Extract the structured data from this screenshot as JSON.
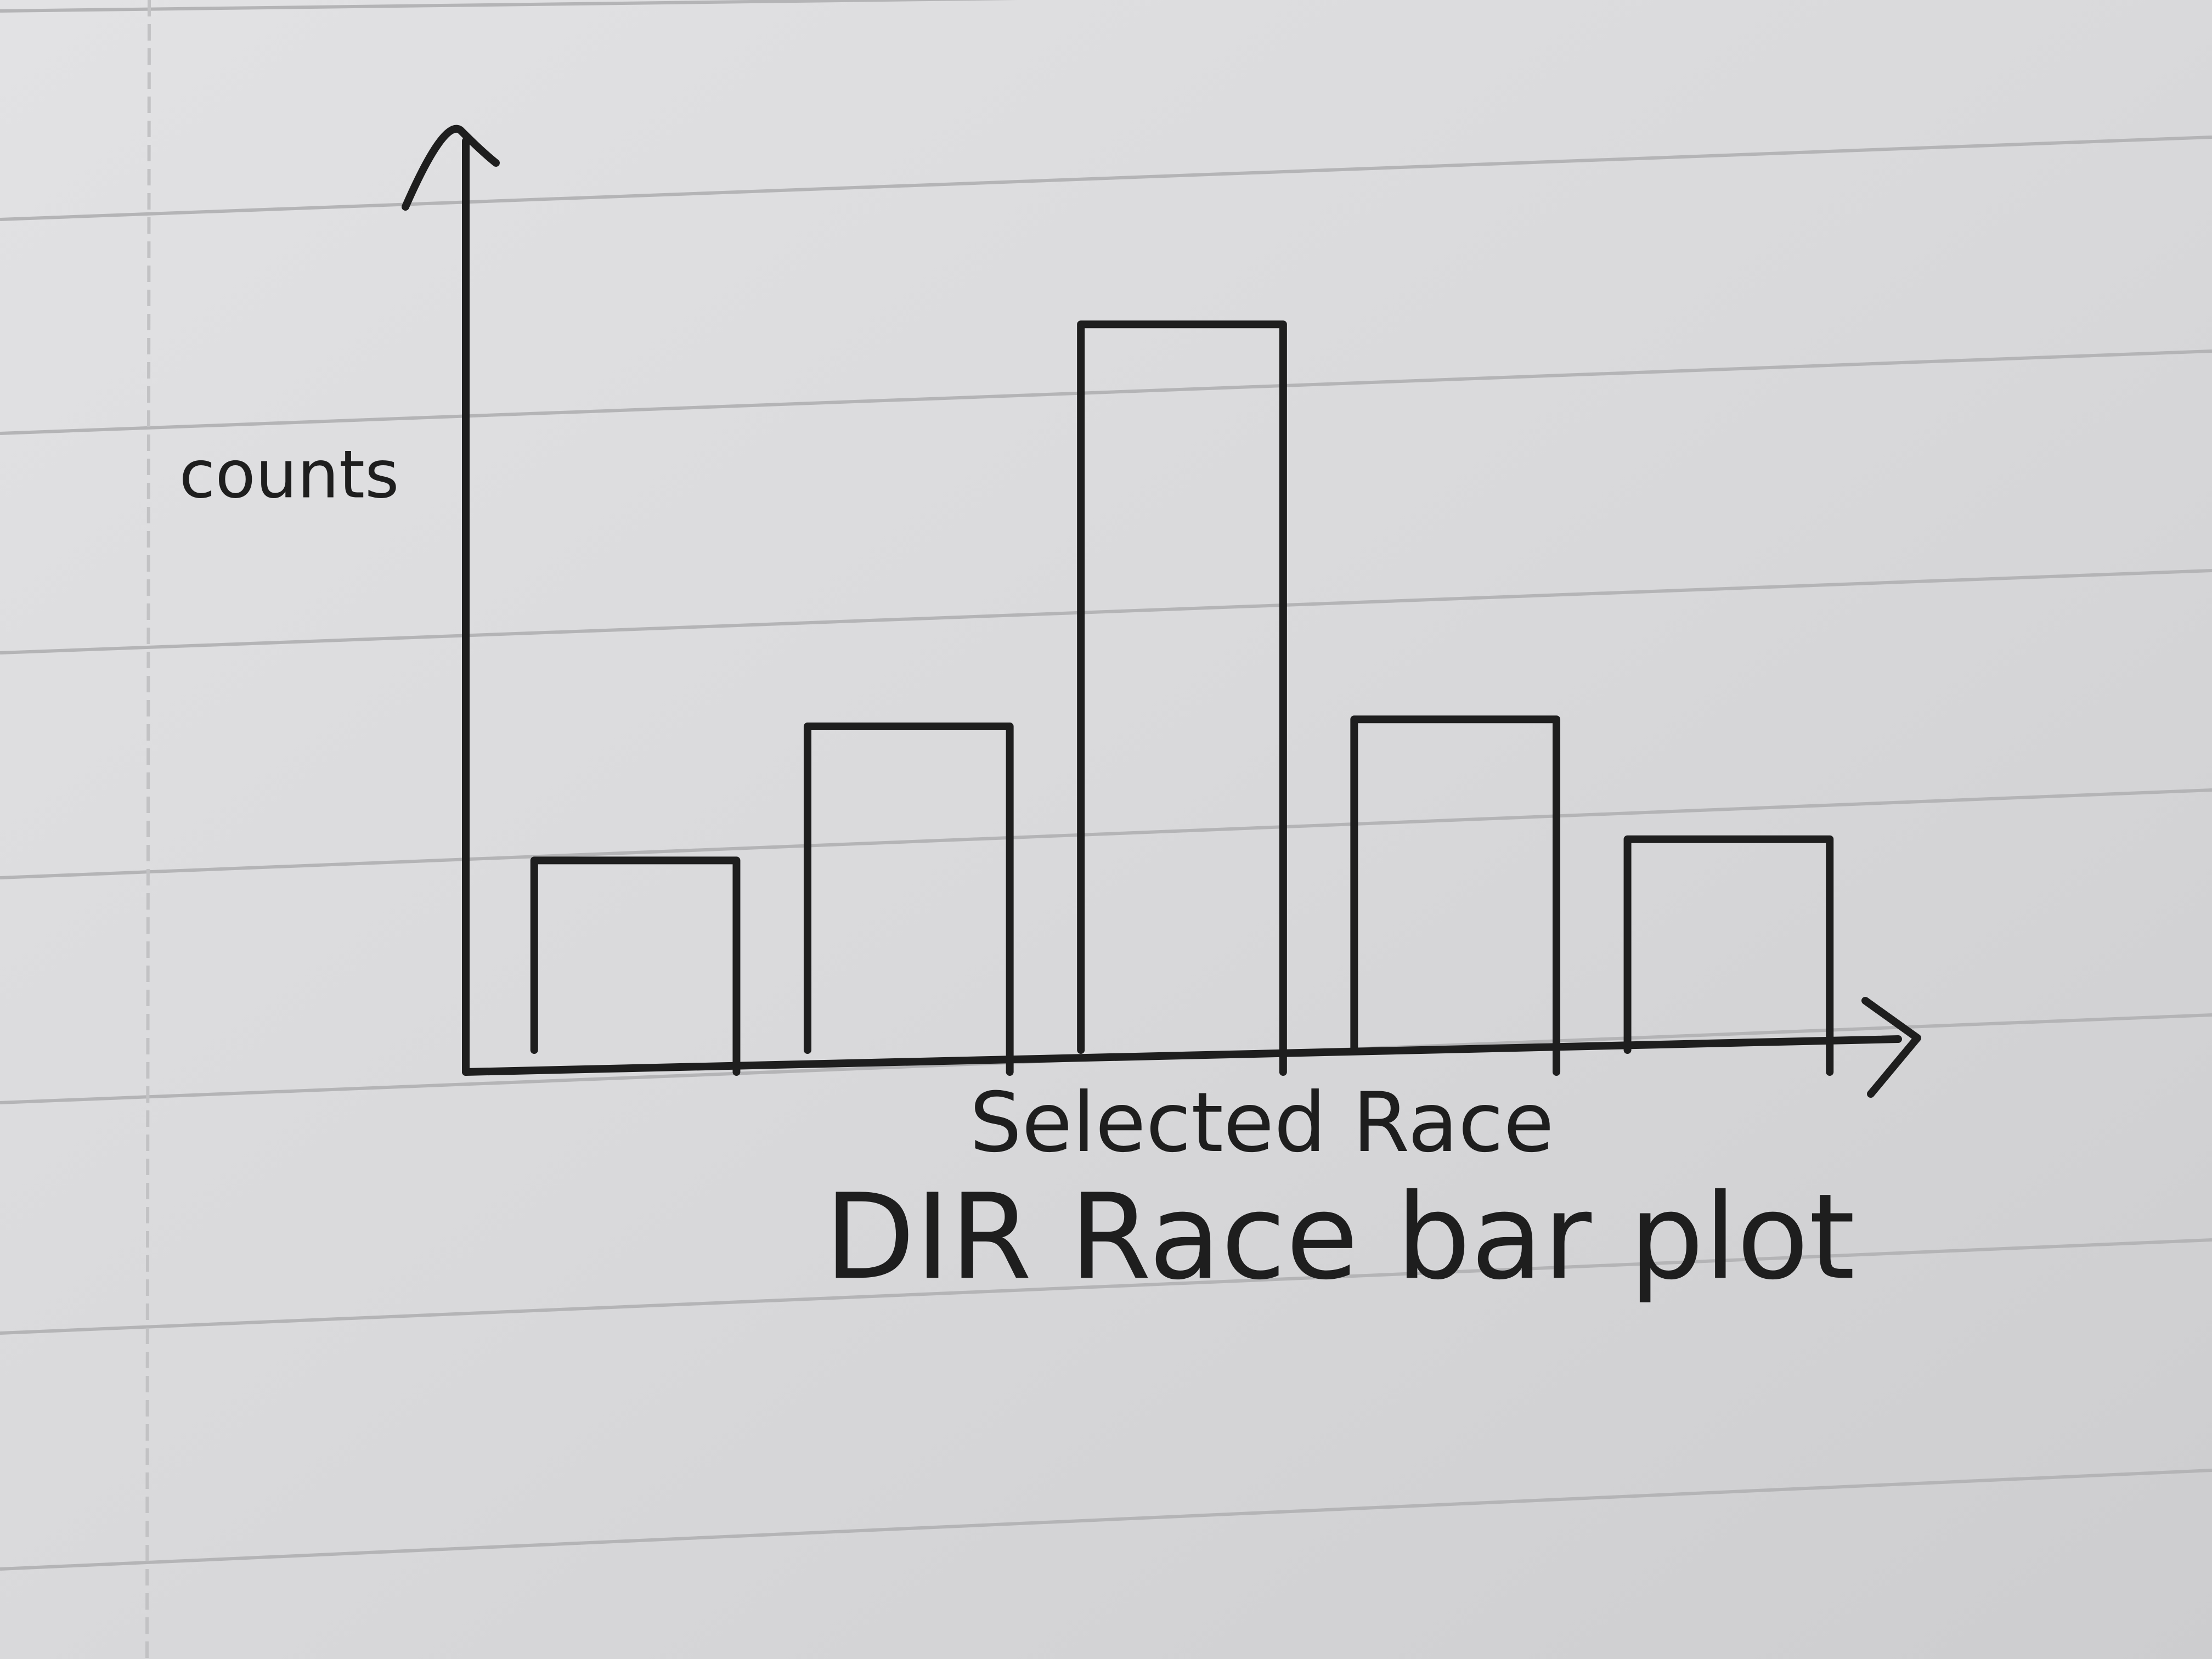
{
  "chart_data": {
    "type": "bar",
    "title": "DIR Race bar plot",
    "x_label": "Selected Race",
    "y_label": "counts",
    "categories": [
      null,
      null,
      null,
      null,
      null
    ],
    "values": [
      150,
      245,
      530,
      250,
      165
    ],
    "ylim": [
      0,
      660
    ],
    "color": "#1e1e1e",
    "grid": false
  }
}
